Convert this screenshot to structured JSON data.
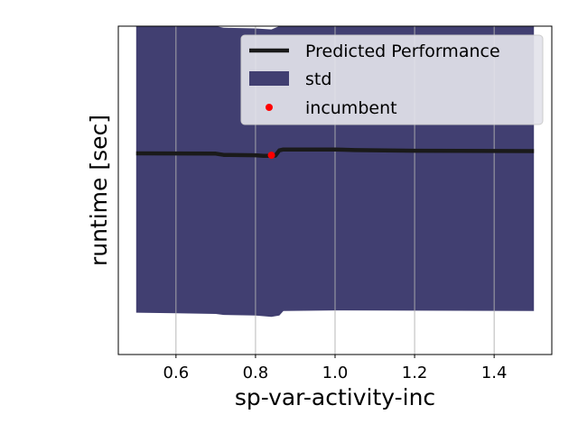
{
  "chart_data": {
    "type": "line",
    "title": "",
    "xlabel": "sp-var-activity-inc",
    "ylabel": "runtime [sec]",
    "xlim": [
      0.455,
      1.545
    ],
    "ylim": [
      -0.02,
      1.0
    ],
    "x_ticks": [
      0.6,
      0.8,
      1.0,
      1.2,
      1.4
    ],
    "x_tick_labels": [
      "0.6",
      "0.8",
      "1.0",
      "1.2",
      "1.4"
    ],
    "y_ticks_visible": false,
    "grid": "x-only",
    "legend_position": "top-right",
    "colors": {
      "mean": "#1a1a1a",
      "std": "#413f71",
      "incumbent": "#ff0000",
      "grid": "#b0b0b0",
      "legend_bg": "#e3e3ea"
    },
    "series": [
      {
        "name": "Predicted Performance",
        "kind": "line",
        "x": [
          0.5,
          0.7,
          0.72,
          0.8,
          0.82,
          0.84,
          0.85,
          0.86,
          0.87,
          1.0,
          1.05,
          1.2,
          1.5
        ],
        "y": [
          0.605,
          0.604,
          0.6,
          0.599,
          0.597,
          0.597,
          0.598,
          0.614,
          0.617,
          0.617,
          0.615,
          0.613,
          0.612
        ]
      },
      {
        "name": "std",
        "kind": "band",
        "x": [
          0.5,
          0.6,
          0.7,
          0.72,
          0.8,
          0.84,
          0.86,
          0.87,
          1.0,
          1.5
        ],
        "y_lower": [
          0.11,
          0.108,
          0.106,
          0.103,
          0.101,
          0.097,
          0.101,
          0.115,
          0.117,
          0.115
        ],
        "y_upper": [
          1.0,
          1.0,
          1.0,
          0.995,
          0.993,
          0.99,
          1.0,
          1.0,
          1.0,
          1.0
        ]
      },
      {
        "name": "incumbent",
        "kind": "point",
        "x": [
          0.84
        ],
        "y": [
          0.599
        ]
      }
    ],
    "legend": [
      "Predicted Performance",
      "std",
      "incumbent"
    ]
  }
}
